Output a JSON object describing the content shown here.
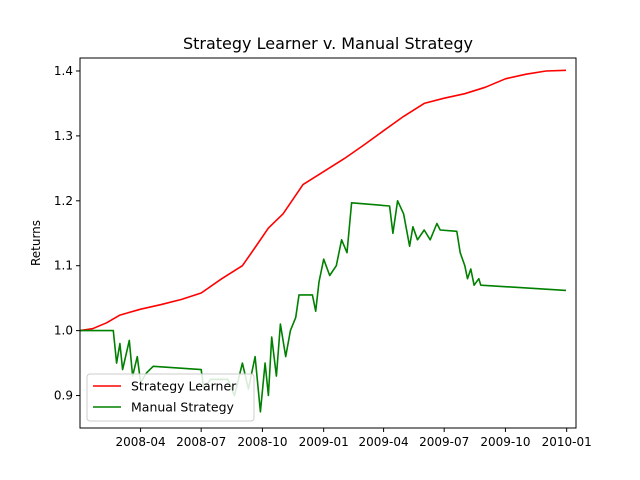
{
  "chart_data": {
    "type": "line",
    "title": "Strategy Learner v. Manual Strategy",
    "xlabel": "",
    "ylabel": "Returns",
    "xlim": [
      "2008-01-01",
      "2010-01-15"
    ],
    "ylim": [
      0.85,
      1.42
    ],
    "grid": false,
    "legend_position": "lower-left",
    "x_ticks": [
      "2008-04",
      "2008-07",
      "2008-10",
      "2009-01",
      "2009-04",
      "2009-07",
      "2009-10",
      "2010-01"
    ],
    "y_ticks": [
      0.9,
      1.0,
      1.1,
      1.2,
      1.3,
      1.4
    ],
    "series": [
      {
        "name": "Strategy Learner",
        "color": "#ff0000",
        "points": [
          [
            "2008-01-01",
            1.0
          ],
          [
            "2008-01-20",
            1.003
          ],
          [
            "2008-02-10",
            1.012
          ],
          [
            "2008-03-01",
            1.024
          ],
          [
            "2008-04-01",
            1.033
          ],
          [
            "2008-05-01",
            1.04
          ],
          [
            "2008-06-01",
            1.048
          ],
          [
            "2008-07-01",
            1.058
          ],
          [
            "2008-08-01",
            1.08
          ],
          [
            "2008-09-01",
            1.1
          ],
          [
            "2008-09-20",
            1.128
          ],
          [
            "2008-10-10",
            1.158
          ],
          [
            "2008-11-01",
            1.18
          ],
          [
            "2008-12-01",
            1.225
          ],
          [
            "2009-01-01",
            1.245
          ],
          [
            "2009-02-01",
            1.265
          ],
          [
            "2009-03-01",
            1.285
          ],
          [
            "2009-04-01",
            1.308
          ],
          [
            "2009-05-01",
            1.33
          ],
          [
            "2009-06-01",
            1.35
          ],
          [
            "2009-07-01",
            1.358
          ],
          [
            "2009-08-01",
            1.365
          ],
          [
            "2009-09-01",
            1.375
          ],
          [
            "2009-10-01",
            1.388
          ],
          [
            "2009-11-01",
            1.395
          ],
          [
            "2009-12-01",
            1.4
          ],
          [
            "2009-12-31",
            1.401
          ]
        ]
      },
      {
        "name": "Manual Strategy",
        "color": "#008000",
        "points": [
          [
            "2008-01-01",
            1.0
          ],
          [
            "2008-02-20",
            1.0
          ],
          [
            "2008-02-25",
            0.95
          ],
          [
            "2008-03-01",
            0.98
          ],
          [
            "2008-03-05",
            0.94
          ],
          [
            "2008-03-15",
            0.985
          ],
          [
            "2008-03-20",
            0.93
          ],
          [
            "2008-03-27",
            0.96
          ],
          [
            "2008-04-01",
            0.92
          ],
          [
            "2008-04-10",
            0.935
          ],
          [
            "2008-04-20",
            0.945
          ],
          [
            "2008-07-01",
            0.94
          ],
          [
            "2008-07-05",
            0.91
          ],
          [
            "2008-07-15",
            0.925
          ],
          [
            "2008-08-10",
            0.925
          ],
          [
            "2008-08-20",
            0.9
          ],
          [
            "2008-09-01",
            0.95
          ],
          [
            "2008-09-10",
            0.91
          ],
          [
            "2008-09-20",
            0.96
          ],
          [
            "2008-09-28",
            0.875
          ],
          [
            "2008-10-05",
            0.95
          ],
          [
            "2008-10-10",
            0.9
          ],
          [
            "2008-10-15",
            0.99
          ],
          [
            "2008-10-22",
            0.93
          ],
          [
            "2008-10-28",
            1.01
          ],
          [
            "2008-11-05",
            0.96
          ],
          [
            "2008-11-12",
            1.0
          ],
          [
            "2008-11-20",
            1.02
          ],
          [
            "2008-11-25",
            1.055
          ],
          [
            "2008-12-15",
            1.055
          ],
          [
            "2008-12-20",
            1.03
          ],
          [
            "2008-12-25",
            1.075
          ],
          [
            "2009-01-01",
            1.11
          ],
          [
            "2009-01-10",
            1.085
          ],
          [
            "2009-01-20",
            1.1
          ],
          [
            "2009-01-28",
            1.14
          ],
          [
            "2009-02-05",
            1.12
          ],
          [
            "2009-02-12",
            1.197
          ],
          [
            "2009-04-10",
            1.192
          ],
          [
            "2009-04-15",
            1.15
          ],
          [
            "2009-04-22",
            1.2
          ],
          [
            "2009-05-01",
            1.18
          ],
          [
            "2009-05-10",
            1.13
          ],
          [
            "2009-05-15",
            1.16
          ],
          [
            "2009-05-22",
            1.14
          ],
          [
            "2009-06-01",
            1.155
          ],
          [
            "2009-06-10",
            1.14
          ],
          [
            "2009-06-20",
            1.165
          ],
          [
            "2009-06-25",
            1.155
          ],
          [
            "2009-07-20",
            1.153
          ],
          [
            "2009-07-25",
            1.12
          ],
          [
            "2009-08-01",
            1.1
          ],
          [
            "2009-08-05",
            1.08
          ],
          [
            "2009-08-10",
            1.095
          ],
          [
            "2009-08-15",
            1.07
          ],
          [
            "2009-08-22",
            1.08
          ],
          [
            "2009-08-25",
            1.07
          ],
          [
            "2009-12-31",
            1.062
          ]
        ]
      }
    ]
  }
}
